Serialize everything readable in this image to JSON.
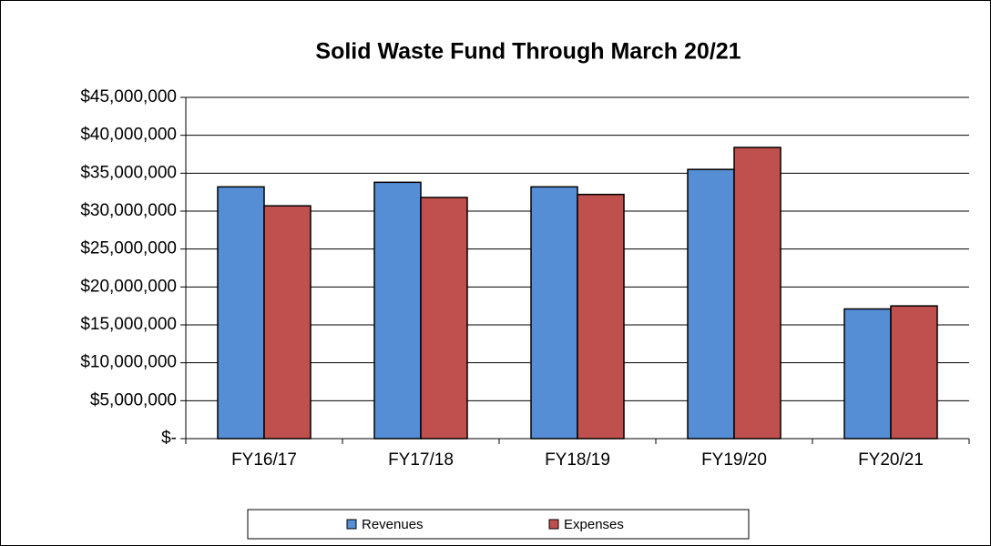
{
  "chart_data": {
    "type": "bar",
    "title": "Solid Waste Fund Through March 20/21",
    "categories": [
      "FY16/17",
      "FY17/18",
      "FY18/19",
      "FY19/20",
      "FY20/21"
    ],
    "series": [
      {
        "name": "Revenues",
        "color": "#558ed5",
        "values": [
          33200000,
          33800000,
          33200000,
          35500000,
          17100000
        ]
      },
      {
        "name": "Expenses",
        "color": "#c0504d",
        "values": [
          30700000,
          31800000,
          32200000,
          38400000,
          17500000
        ]
      }
    ],
    "ylim": [
      0,
      45000000
    ],
    "yticks": [
      {
        "value": 0,
        "label": "$-"
      },
      {
        "value": 5000000,
        "label": "$5,000,000"
      },
      {
        "value": 10000000,
        "label": "$10,000,000"
      },
      {
        "value": 15000000,
        "label": "$15,000,000"
      },
      {
        "value": 20000000,
        "label": "$20,000,000"
      },
      {
        "value": 25000000,
        "label": "$25,000,000"
      },
      {
        "value": 30000000,
        "label": "$30,000,000"
      },
      {
        "value": 35000000,
        "label": "$35,000,000"
      },
      {
        "value": 40000000,
        "label": "$40,000,000"
      },
      {
        "value": 45000000,
        "label": "$45,000,000"
      }
    ],
    "grid": true,
    "legend": "bottom"
  }
}
